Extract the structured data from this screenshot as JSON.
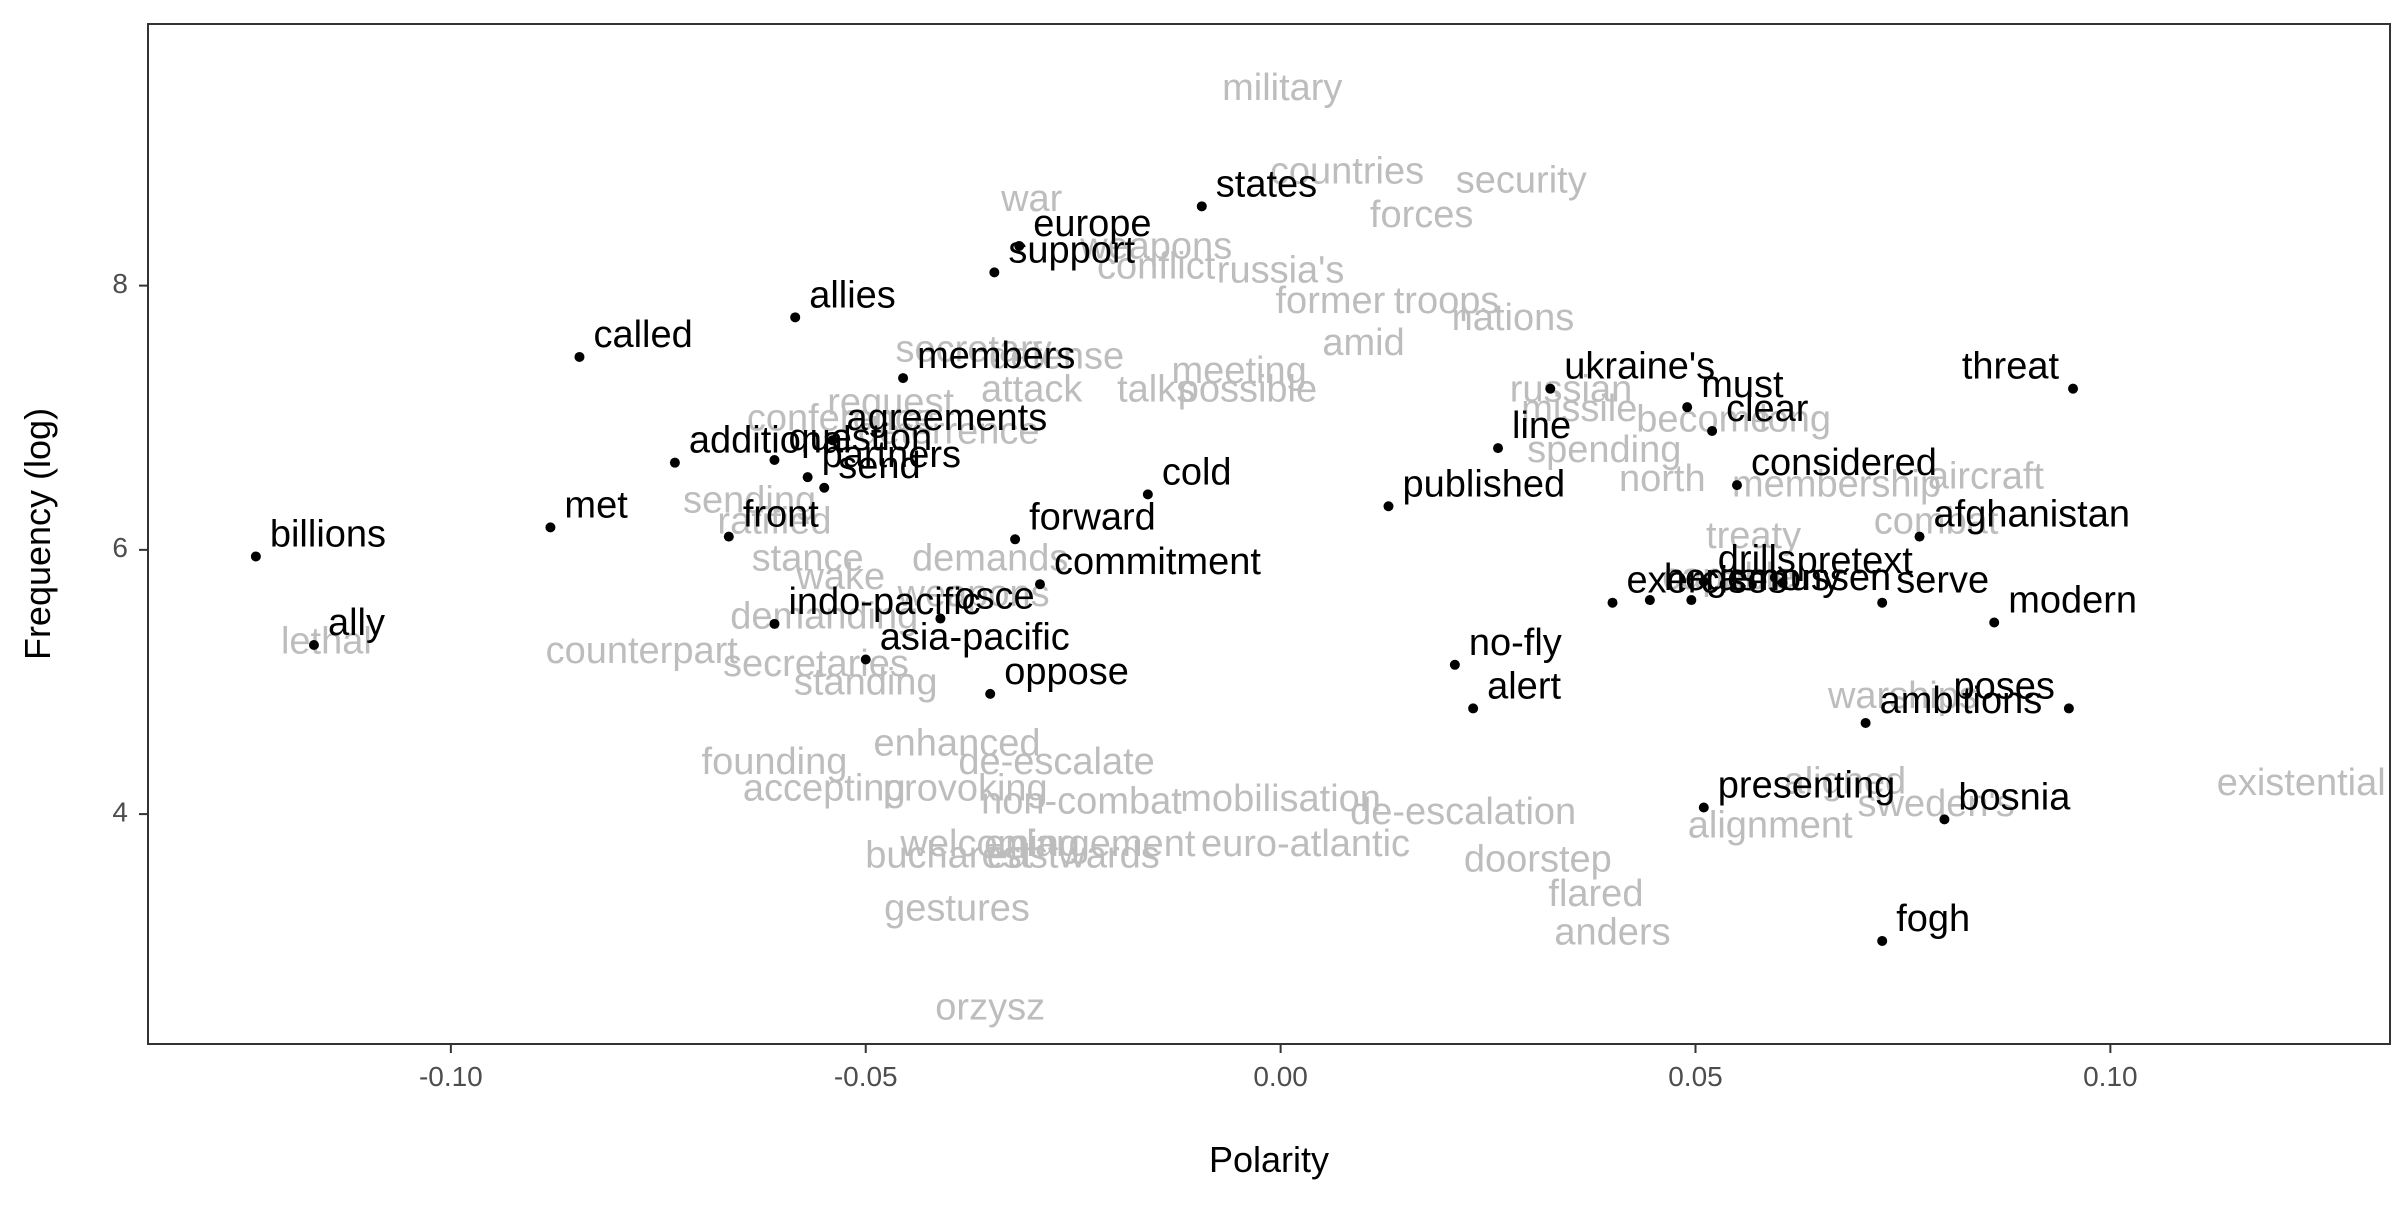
{
  "chart_data": {
    "type": "scatter",
    "title": "",
    "xlabel": "Polarity",
    "ylabel": "Frequency (log)",
    "xlim": [
      -0.1365,
      0.1337
    ],
    "ylim": [
      2.26,
      9.98
    ],
    "x_ticks": [
      -0.1,
      -0.05,
      0.0,
      0.05,
      0.1
    ],
    "x_tick_labels": [
      "-0.10",
      "-0.05",
      "0.00",
      "0.05",
      "0.10"
    ],
    "y_ticks": [
      4,
      6,
      8
    ],
    "y_tick_labels": [
      "4",
      "6",
      "8"
    ],
    "grid": false,
    "legend": "none",
    "colors": {
      "highlighted": "#000000",
      "background_words": "#bdbdbd",
      "panel_border": "#333333"
    },
    "highlighted_words": [
      {
        "label": "states",
        "x": -0.0095,
        "y": 8.6
      },
      {
        "label": "europe",
        "x": -0.0315,
        "y": 8.3
      },
      {
        "label": "support",
        "x": -0.0345,
        "y": 8.1
      },
      {
        "label": "allies",
        "x": -0.0585,
        "y": 7.76
      },
      {
        "label": "called",
        "x": -0.0845,
        "y": 7.46
      },
      {
        "label": "members",
        "x": -0.0455,
        "y": 7.3
      },
      {
        "label": "ukraine's",
        "x": 0.0325,
        "y": 7.22
      },
      {
        "label": "must",
        "x": 0.049,
        "y": 7.08
      },
      {
        "label": "threat",
        "x": 0.0955,
        "y": 7.22
      },
      {
        "label": "partners",
        "x": -0.057,
        "y": 6.55
      },
      {
        "label": "question",
        "x": -0.061,
        "y": 6.68
      },
      {
        "label": "clear",
        "x": 0.052,
        "y": 6.9
      },
      {
        "label": "line",
        "x": 0.0262,
        "y": 6.77
      },
      {
        "label": "additional",
        "x": -0.073,
        "y": 6.66
      },
      {
        "label": "agreements",
        "x": -0.054,
        "y": 6.83
      },
      {
        "label": "cold",
        "x": -0.016,
        "y": 6.42
      },
      {
        "label": "published",
        "x": 0.013,
        "y": 6.33
      },
      {
        "label": "considered",
        "x": 0.055,
        "y": 6.49
      },
      {
        "label": "front",
        "x": -0.0665,
        "y": 6.1
      },
      {
        "label": "send",
        "x": -0.055,
        "y": 6.47
      },
      {
        "label": "forward",
        "x": -0.032,
        "y": 6.08
      },
      {
        "label": "afghanistan",
        "x": 0.077,
        "y": 6.1
      },
      {
        "label": "billions",
        "x": -0.1235,
        "y": 5.95
      },
      {
        "label": "met",
        "x": -0.088,
        "y": 6.17
      },
      {
        "label": "drills",
        "x": 0.051,
        "y": 5.76
      },
      {
        "label": "pretext",
        "x": 0.0605,
        "y": 5.75
      },
      {
        "label": "modern",
        "x": 0.086,
        "y": 5.45
      },
      {
        "label": "indo-pacific",
        "x": -0.061,
        "y": 5.44
      },
      {
        "label": "commitment",
        "x": -0.029,
        "y": 5.74
      },
      {
        "label": "exercises",
        "x": 0.04,
        "y": 5.6
      },
      {
        "label": "osce",
        "x": -0.041,
        "y": 5.48
      },
      {
        "label": "serve",
        "x": 0.0725,
        "y": 5.6
      },
      {
        "label": "hegemony",
        "x": 0.0445,
        "y": 5.62
      },
      {
        "label": "asia-pacific",
        "x": -0.05,
        "y": 5.17
      },
      {
        "label": "no-fly",
        "x": 0.021,
        "y": 5.13
      },
      {
        "label": "poses",
        "x": 0.095,
        "y": 4.8
      },
      {
        "label": "oppose",
        "x": -0.035,
        "y": 4.91
      },
      {
        "label": "alert",
        "x": 0.0232,
        "y": 4.8
      },
      {
        "label": "rasmussen",
        "x": 0.0495,
        "y": 5.62
      },
      {
        "label": "ambitions",
        "x": 0.0705,
        "y": 4.69
      },
      {
        "label": "presenting",
        "x": 0.051,
        "y": 4.05
      },
      {
        "label": "bosnia",
        "x": 0.08,
        "y": 3.96
      },
      {
        "label": "fogh",
        "x": 0.0725,
        "y": 3.04
      },
      {
        "label": "ally",
        "x": -0.1165,
        "y": 5.28
      }
    ],
    "background_words": [
      {
        "label": "military",
        "x": 0.0002,
        "y": 9.48
      },
      {
        "label": "countries",
        "x": 0.008,
        "y": 8.85
      },
      {
        "label": "security",
        "x": 0.029,
        "y": 8.78
      },
      {
        "label": "war",
        "x": -0.03,
        "y": 8.64
      },
      {
        "label": "forces",
        "x": 0.017,
        "y": 8.52
      },
      {
        "label": "weapons",
        "x": -0.015,
        "y": 8.28
      },
      {
        "label": "conflict",
        "x": -0.015,
        "y": 8.13
      },
      {
        "label": "russia's",
        "x": 0.0,
        "y": 8.1
      },
      {
        "label": "former",
        "x": 0.006,
        "y": 7.87
      },
      {
        "label": "troops",
        "x": 0.02,
        "y": 7.87
      },
      {
        "label": "nations",
        "x": 0.028,
        "y": 7.74
      },
      {
        "label": "amid",
        "x": 0.01,
        "y": 7.55
      },
      {
        "label": "secretary",
        "x": -0.037,
        "y": 7.5
      },
      {
        "label": "defense",
        "x": -0.027,
        "y": 7.45
      },
      {
        "label": "meeting",
        "x": -0.005,
        "y": 7.34
      },
      {
        "label": "attack",
        "x": -0.03,
        "y": 7.2
      },
      {
        "label": "talks",
        "x": -0.015,
        "y": 7.2
      },
      {
        "label": "possible",
        "x": -0.004,
        "y": 7.2
      },
      {
        "label": "russian",
        "x": 0.035,
        "y": 7.2
      },
      {
        "label": "request",
        "x": -0.047,
        "y": 7.1
      },
      {
        "label": "missile",
        "x": 0.036,
        "y": 7.05
      },
      {
        "label": "become",
        "x": 0.051,
        "y": 6.97
      },
      {
        "label": "long",
        "x": 0.062,
        "y": 6.97
      },
      {
        "label": "conference",
        "x": -0.053,
        "y": 6.98
      },
      {
        "label": "deterrence",
        "x": -0.04,
        "y": 6.88
      },
      {
        "label": "spending",
        "x": 0.039,
        "y": 6.74
      },
      {
        "label": "north",
        "x": 0.046,
        "y": 6.52
      },
      {
        "label": "membership",
        "x": 0.067,
        "y": 6.48
      },
      {
        "label": "aircraft",
        "x": 0.085,
        "y": 6.54
      },
      {
        "label": "sending",
        "x": -0.064,
        "y": 6.36
      },
      {
        "label": "ratified",
        "x": -0.061,
        "y": 6.2
      },
      {
        "label": "combat",
        "x": 0.079,
        "y": 6.2
      },
      {
        "label": "treaty",
        "x": 0.057,
        "y": 6.09
      },
      {
        "label": "stance",
        "x": -0.057,
        "y": 5.92
      },
      {
        "label": "wake",
        "x": -0.053,
        "y": 5.78
      },
      {
        "label": "demands",
        "x": -0.035,
        "y": 5.92
      },
      {
        "label": "capable",
        "x": 0.054,
        "y": 5.78
      },
      {
        "label": "weapons",
        "x": -0.037,
        "y": 5.65
      },
      {
        "label": "demanding",
        "x": -0.055,
        "y": 5.48
      },
      {
        "label": "lethal",
        "x": -0.115,
        "y": 5.29
      },
      {
        "label": "counterpart",
        "x": -0.077,
        "y": 5.22
      },
      {
        "label": "secretaries",
        "x": -0.056,
        "y": 5.12
      },
      {
        "label": "standing",
        "x": -0.05,
        "y": 4.98
      },
      {
        "label": "warships",
        "x": 0.075,
        "y": 4.88
      },
      {
        "label": "founding",
        "x": -0.061,
        "y": 4.38
      },
      {
        "label": "enhanced",
        "x": -0.039,
        "y": 4.52
      },
      {
        "label": "de-escalate",
        "x": -0.027,
        "y": 4.38
      },
      {
        "label": "accepting",
        "x": -0.055,
        "y": 4.18
      },
      {
        "label": "provoking",
        "x": -0.038,
        "y": 4.18
      },
      {
        "label": "non-combat",
        "x": -0.024,
        "y": 4.08
      },
      {
        "label": "mobilisation",
        "x": 0.0,
        "y": 4.1
      },
      {
        "label": "de-escalation",
        "x": 0.022,
        "y": 4.0
      },
      {
        "label": "aligned",
        "x": 0.068,
        "y": 4.23
      },
      {
        "label": "sweden's",
        "x": 0.079,
        "y": 4.06
      },
      {
        "label": "existential",
        "x": 0.123,
        "y": 4.22
      },
      {
        "label": "welcoming",
        "x": -0.035,
        "y": 3.76
      },
      {
        "label": "enlargement",
        "x": -0.023,
        "y": 3.76
      },
      {
        "label": "euro-atlantic",
        "x": 0.003,
        "y": 3.76
      },
      {
        "label": "bucharest",
        "x": -0.04,
        "y": 3.67
      },
      {
        "label": "eastwards",
        "x": -0.025,
        "y": 3.67
      },
      {
        "label": "alignment",
        "x": 0.059,
        "y": 3.9
      },
      {
        "label": "doorstep",
        "x": 0.031,
        "y": 3.64
      },
      {
        "label": "flared",
        "x": 0.038,
        "y": 3.38
      },
      {
        "label": "anders",
        "x": 0.04,
        "y": 3.09
      },
      {
        "label": "gestures",
        "x": -0.039,
        "y": 3.27
      },
      {
        "label": "orzysz",
        "x": -0.035,
        "y": 2.52
      }
    ]
  }
}
